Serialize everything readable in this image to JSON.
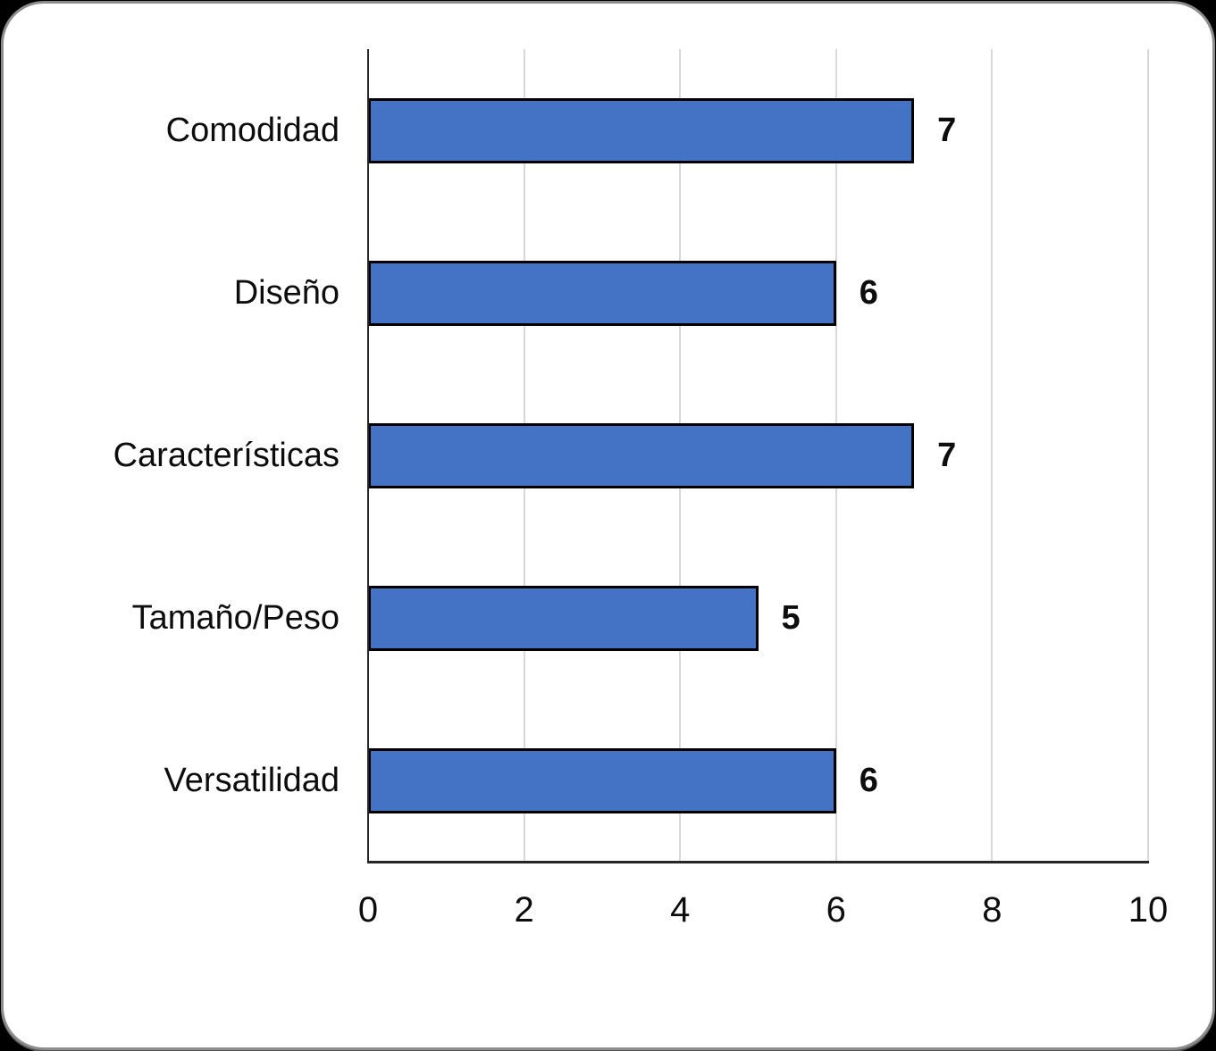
{
  "page": {
    "background_color": "#000000",
    "card_background": "#FFFFFF",
    "card_border_color": "#8C8C8C"
  },
  "chart_data": {
    "type": "bar",
    "orientation": "horizontal",
    "title": "",
    "xlabel": "",
    "ylabel": "",
    "categories": [
      "Comodidad",
      "Diseño",
      "Características",
      "Tamaño/Peso",
      "Versatilidad"
    ],
    "values": [
      7,
      6,
      7,
      5,
      6
    ],
    "data_labels": [
      "7",
      "6",
      "7",
      "5",
      "6"
    ],
    "xlim": [
      0,
      10
    ],
    "x_ticks": [
      "0",
      "2",
      "4",
      "6",
      "8",
      "10"
    ],
    "grid": true,
    "legend": false,
    "colors": {
      "bar_fill": "#4472C4",
      "bar_border": "#000000",
      "gridline": "#D9D9D9",
      "axis_line": "#262626",
      "text": "#0D0D0D"
    }
  }
}
